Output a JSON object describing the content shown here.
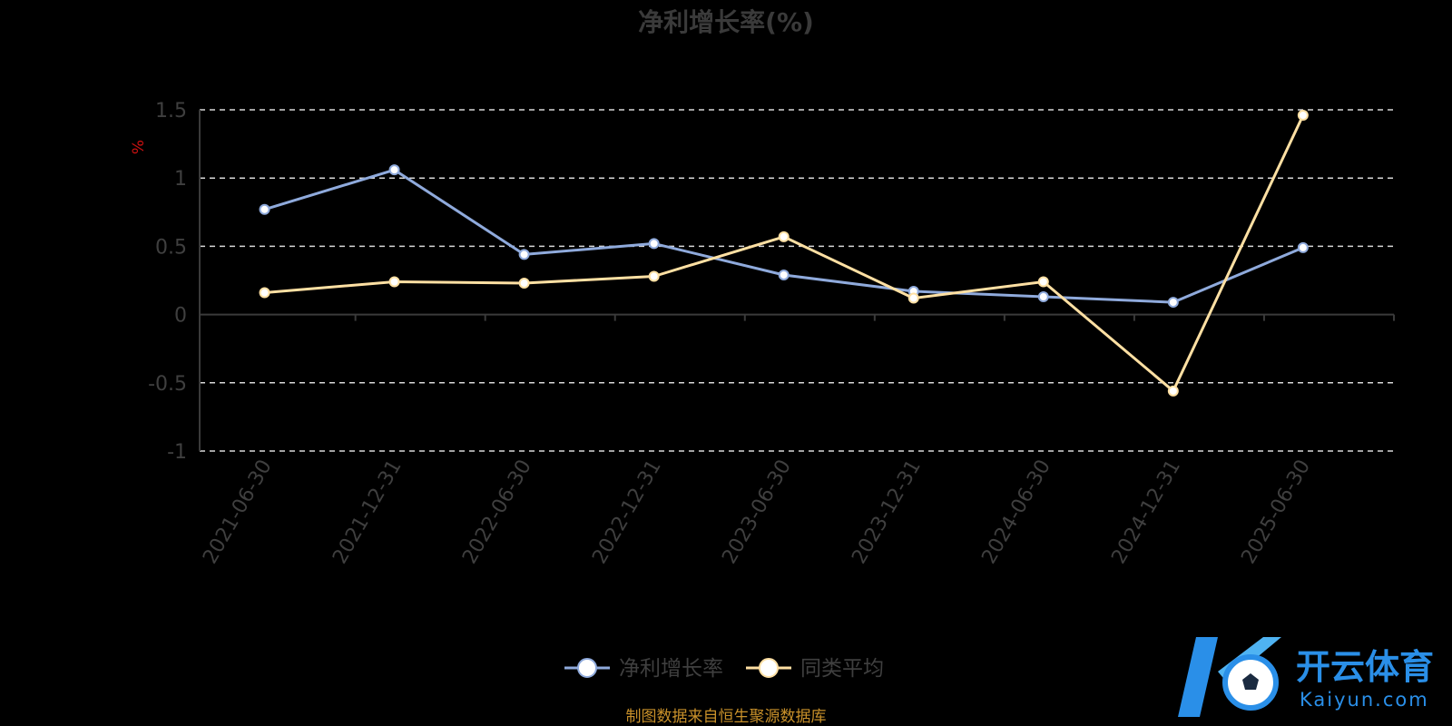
{
  "chart_data": {
    "type": "line",
    "title": "净利增长率(%)",
    "y_unit": "%",
    "categories": [
      "2021-06-30",
      "2021-12-31",
      "2022-06-30",
      "2022-12-31",
      "2023-06-30",
      "2023-12-31",
      "2024-06-30",
      "2024-12-31",
      "2025-06-30"
    ],
    "ylim": [
      -1,
      1.5
    ],
    "yticks": [
      "1.5",
      "1",
      "0.5",
      "0",
      "-0.5",
      "-1"
    ],
    "grid": true,
    "legend_position": "bottom-center",
    "series": [
      {
        "name": "净利增长率",
        "color": "#8faadc",
        "values": [
          0.77,
          1.06,
          0.44,
          0.52,
          0.29,
          0.17,
          0.13,
          0.09,
          0.49
        ]
      },
      {
        "name": "同类平均",
        "color": "#ffe0a3",
        "values": [
          0.16,
          0.24,
          0.23,
          0.28,
          0.57,
          0.12,
          0.24,
          -0.56,
          1.46
        ]
      }
    ]
  },
  "footer": {
    "source": "制图数据来自恒生聚源数据库"
  },
  "watermark": {
    "brand": "开云体育",
    "domain": "Kaiyun.com",
    "logo_icon": "k-soccer-ball-logo"
  }
}
